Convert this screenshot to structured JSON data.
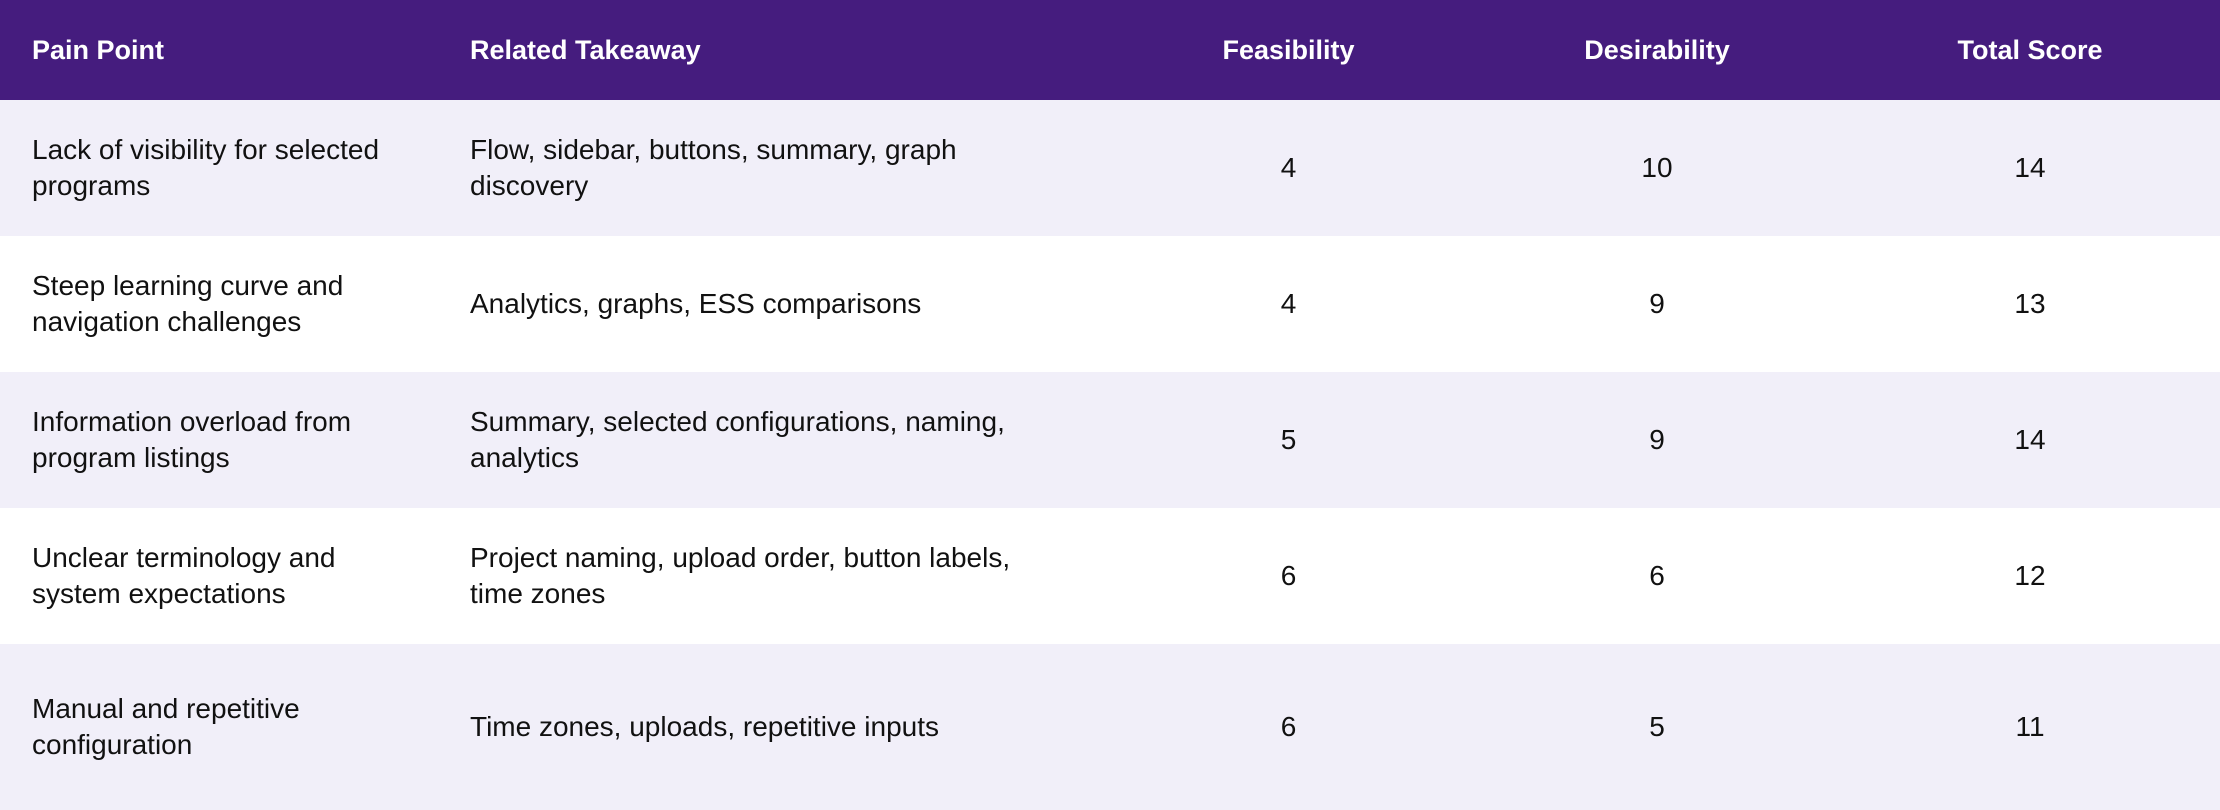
{
  "table": {
    "headers": [
      "Pain Point",
      "Related Takeaway",
      "Feasibility",
      "Desirability",
      "Total Score"
    ],
    "rows": [
      {
        "pain_point": "Lack of visibility for selected programs",
        "takeaway": "Flow, sidebar, buttons, summary, graph discovery",
        "feasibility": "4",
        "desirability": "10",
        "total": "14"
      },
      {
        "pain_point": "Steep learning curve and navigation challenges",
        "takeaway": "Analytics, graphs, ESS comparisons",
        "feasibility": "4",
        "desirability": "9",
        "total": "13"
      },
      {
        "pain_point": "Information overload from program listings",
        "takeaway": "Summary, selected configurations, naming, analytics",
        "feasibility": "5",
        "desirability": "9",
        "total": "14"
      },
      {
        "pain_point": "Unclear terminology and system expectations",
        "takeaway": "Project naming, upload order, button labels, time zones",
        "feasibility": "6",
        "desirability": "6",
        "total": "12"
      },
      {
        "pain_point": "Manual and repetitive configuration",
        "takeaway": "Time zones, uploads, repetitive inputs",
        "feasibility": "6",
        "desirability": "5",
        "total": "11"
      }
    ]
  },
  "colors": {
    "header_bg": "#451c7e",
    "header_text": "#ffffff",
    "row_shade": "#f1eff9",
    "row_plain": "#ffffff"
  }
}
